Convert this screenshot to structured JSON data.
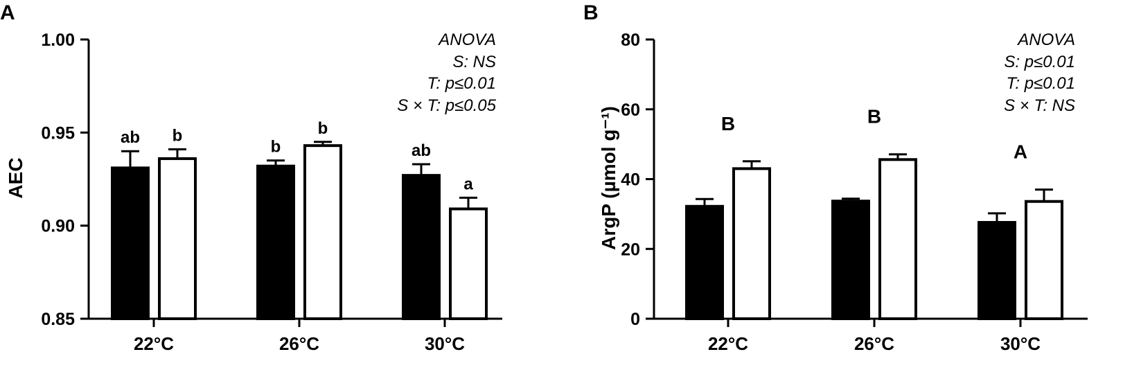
{
  "chart_data": [
    {
      "panel": "A",
      "type": "bar",
      "ylabel": "AEC",
      "xlabel": "",
      "ylim": [
        0.85,
        1.0
      ],
      "yticks": [
        "0.85",
        "0.90",
        "0.95",
        "1.00"
      ],
      "categories": [
        "22°C",
        "26°C",
        "30°C"
      ],
      "series": [
        {
          "fill": "#000000",
          "values": [
            0.931,
            0.932,
            0.927
          ],
          "errors": [
            0.009,
            0.003,
            0.006
          ]
        },
        {
          "fill": "#ffffff",
          "values": [
            0.936,
            0.943,
            0.909
          ],
          "errors": [
            0.005,
            0.002,
            0.006
          ]
        }
      ],
      "bar_labels": [
        [
          "ab",
          "b",
          "ab"
        ],
        [
          "b",
          "b",
          "a"
        ]
      ],
      "group_labels": [],
      "annotation": [
        "ANOVA",
        "S: NS",
        "T: p≤0.01",
        "S × T: p≤0.05"
      ],
      "grid": false
    },
    {
      "panel": "B",
      "type": "bar",
      "ylabel": "ArgP (µmol g⁻¹)",
      "xlabel": "",
      "ylim": [
        0,
        80
      ],
      "yticks": [
        "0",
        "20",
        "40",
        "60",
        "80"
      ],
      "categories": [
        "22°C",
        "26°C",
        "30°C"
      ],
      "series": [
        {
          "fill": "#000000",
          "values": [
            32.2,
            33.7,
            27.6
          ],
          "errors": [
            2.1,
            0.7,
            2.6
          ]
        },
        {
          "fill": "#ffffff",
          "values": [
            43.0,
            45.6,
            33.6
          ],
          "errors": [
            2.1,
            1.5,
            3.4
          ]
        }
      ],
      "bar_labels": [],
      "group_labels": [
        "B",
        "B",
        "A"
      ],
      "annotation": [
        "ANOVA",
        "S: p≤0.01",
        "T: p≤0.01",
        "S × T: NS"
      ],
      "grid": false
    }
  ]
}
